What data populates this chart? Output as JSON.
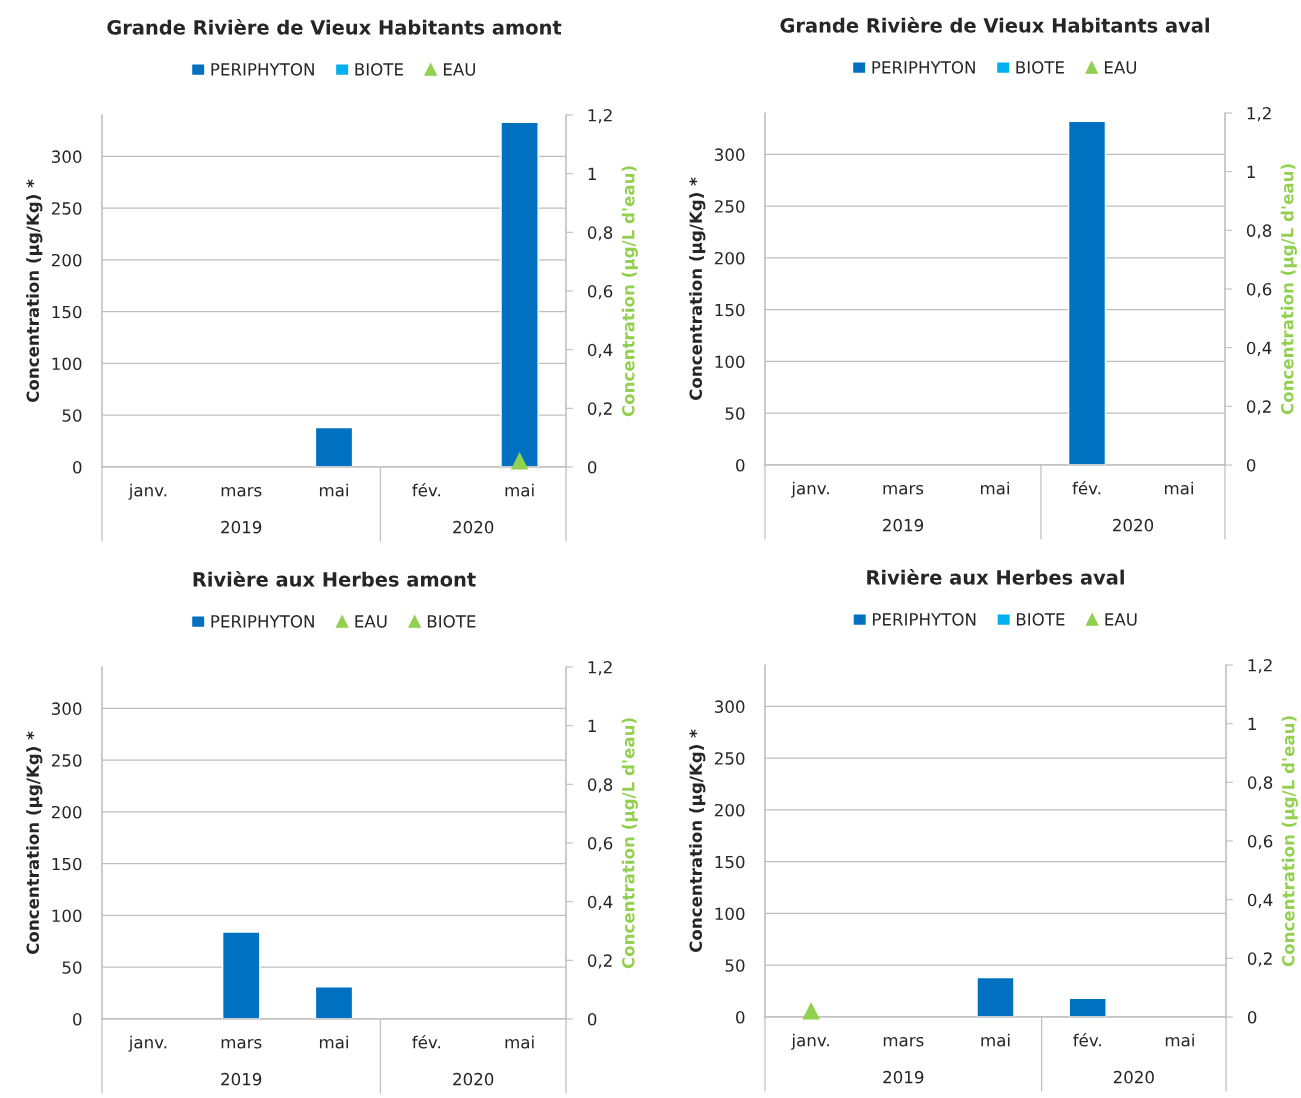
{
  "chart_data": [
    {
      "type": "bar",
      "title": "Grande Rivière de Vieux Habitants amont",
      "categories": [
        "janv.",
        "mars",
        "mai",
        "fév.",
        "mai"
      ],
      "annotations": [
        "2019",
        "2020"
      ],
      "ylabel": "Concentration (µg/Kg) *",
      "y2label": "Concentration (µg/L d'eau)",
      "ylim": [
        0,
        340
      ],
      "yticks": [
        0,
        50,
        100,
        150,
        200,
        250,
        300
      ],
      "y2lim": [
        0,
        1.2
      ],
      "y2ticks": [
        0,
        {
          "value": 0.2,
          "label": "0,2"
        },
        {
          "value": 0.4,
          "label": "0,4"
        },
        {
          "value": 0.6,
          "label": "0,6"
        },
        {
          "value": 0.8,
          "label": "0,8"
        },
        1,
        {
          "value": 1.2,
          "label": "1,2"
        }
      ],
      "grid": "y",
      "legend": "top",
      "series": [
        {
          "name": "PERIPHYTON",
          "color": "#0070c0",
          "values": [
            null,
            null,
            38,
            null,
            333
          ]
        },
        {
          "name": "BIOTE",
          "color": "#00b0f0",
          "values": [
            null,
            null,
            null,
            null,
            null
          ]
        },
        {
          "name": "EAU",
          "type": "scatter",
          "axis": "y2",
          "marker": "triangle",
          "color": "#92d050",
          "values": [
            null,
            null,
            null,
            null,
            0.02
          ]
        }
      ]
    },
    {
      "type": "bar",
      "title": "Grande Rivière de Vieux Habitants aval",
      "categories": [
        "janv.",
        "mars",
        "mai",
        "fév.",
        "mai"
      ],
      "annotations": [
        "2019",
        "2020"
      ],
      "ylabel": "Concentration (µg/Kg) *",
      "y2label": "Concentration (µg/L d'eau)",
      "ylim": [
        0,
        340
      ],
      "yticks": [
        0,
        50,
        100,
        150,
        200,
        250,
        300
      ],
      "y2lim": [
        0,
        1.2
      ],
      "y2ticks": [
        0,
        {
          "value": 0.2,
          "label": "0,2"
        },
        {
          "value": 0.4,
          "label": "0,4"
        },
        {
          "value": 0.6,
          "label": "0,6"
        },
        {
          "value": 0.8,
          "label": "0,8"
        },
        1,
        {
          "value": 1.2,
          "label": "1,2"
        }
      ],
      "grid": "y",
      "legend": "top",
      "series": [
        {
          "name": "PERIPHYTON",
          "color": "#0070c0",
          "values": [
            null,
            null,
            null,
            332,
            null
          ]
        },
        {
          "name": "BIOTE",
          "color": "#00b0f0",
          "values": [
            null,
            null,
            null,
            null,
            null
          ]
        },
        {
          "name": "EAU",
          "type": "scatter",
          "axis": "y2",
          "marker": "triangle",
          "color": "#92d050",
          "values": [
            null,
            null,
            null,
            null,
            null
          ]
        }
      ]
    },
    {
      "type": "bar",
      "title": "Rivière aux Herbes amont",
      "categories": [
        "janv.",
        "mars",
        "mai",
        "fév.",
        "mai"
      ],
      "annotations": [
        "2019",
        "2020"
      ],
      "ylabel": "Concentration (µg/Kg) *",
      "y2label": "Concentration (µg/L d'eau)",
      "ylim": [
        0,
        340
      ],
      "yticks": [
        0,
        50,
        100,
        150,
        200,
        250,
        300
      ],
      "y2lim": [
        0,
        1.2
      ],
      "y2ticks": [
        0,
        {
          "value": 0.2,
          "label": "0,2"
        },
        {
          "value": 0.4,
          "label": "0,4"
        },
        {
          "value": 0.6,
          "label": "0,6"
        },
        {
          "value": 0.8,
          "label": "0,8"
        },
        1,
        {
          "value": 1.2,
          "label": "1,2"
        }
      ],
      "grid": "y",
      "legend": "top",
      "series": [
        {
          "name": "PERIPHYTON",
          "color": "#0070c0",
          "values": [
            null,
            84,
            31,
            null,
            null
          ]
        },
        {
          "name": "EAU",
          "type": "scatter",
          "axis": "y2",
          "marker": "triangle",
          "color": "#92d050",
          "values": [
            null,
            null,
            null,
            null,
            null
          ]
        },
        {
          "name": "BIOTE",
          "type": "scatter",
          "axis": "y2",
          "marker": "triangle",
          "color": "#92d050",
          "values": [
            null,
            null,
            null,
            null,
            null
          ]
        }
      ]
    },
    {
      "type": "bar",
      "title": "Rivière aux Herbes aval",
      "categories": [
        "janv.",
        "mars",
        "mai",
        "fév.",
        "mai"
      ],
      "annotations": [
        "2019",
        "2020"
      ],
      "ylabel": "Concentration (µg/Kg) *",
      "y2label": "Concentration (µg/L d'eau)",
      "ylim": [
        0,
        340
      ],
      "yticks": [
        0,
        50,
        100,
        150,
        200,
        250,
        300
      ],
      "y2lim": [
        0,
        1.2
      ],
      "y2ticks": [
        0,
        {
          "value": 0.2,
          "label": "0,2"
        },
        {
          "value": 0.4,
          "label": "0,4"
        },
        {
          "value": 0.6,
          "label": "0,6"
        },
        {
          "value": 0.8,
          "label": "0,8"
        },
        1,
        {
          "value": 1.2,
          "label": "1,2"
        }
      ],
      "grid": "y",
      "legend": "top",
      "series": [
        {
          "name": "PERIPHYTON",
          "color": "#0070c0",
          "values": [
            null,
            null,
            38,
            18,
            null
          ]
        },
        {
          "name": "BIOTE",
          "color": "#00b0f0",
          "values": [
            null,
            null,
            null,
            null,
            null
          ]
        },
        {
          "name": "EAU",
          "type": "scatter",
          "axis": "y2",
          "marker": "triangle",
          "color": "#92d050",
          "values": [
            0.02,
            null,
            null,
            null,
            null
          ]
        }
      ]
    }
  ]
}
